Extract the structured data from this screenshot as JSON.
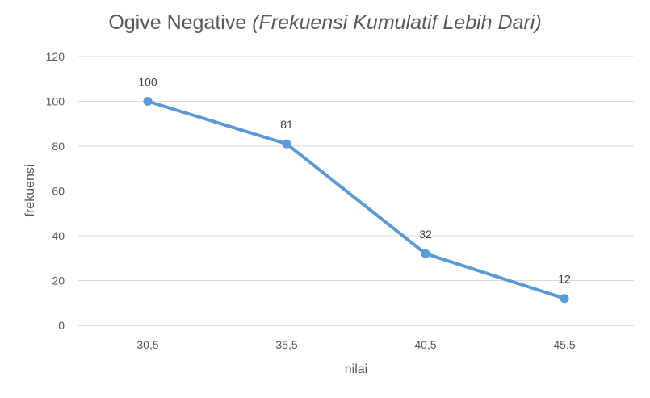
{
  "chart_data": {
    "type": "line",
    "title": "Ogive Negative",
    "subtitle": "(Frekuensi Kumulatif Lebih Dari)",
    "xlabel": "nilai",
    "ylabel": "frekuensi",
    "categories": [
      "30,5",
      "35,5",
      "40,5",
      "45,5"
    ],
    "series": [
      {
        "values": [
          100,
          81,
          32,
          12
        ],
        "color": "#5B9BD5"
      }
    ],
    "ylim": [
      0,
      120
    ],
    "yticks": [
      0,
      20,
      40,
      60,
      80,
      100,
      120
    ],
    "grid": true,
    "data_labels": true,
    "legend": "none",
    "colors": {
      "line": "#5B9BD5",
      "grid": "#D9D9D9",
      "text": "#595959"
    }
  }
}
